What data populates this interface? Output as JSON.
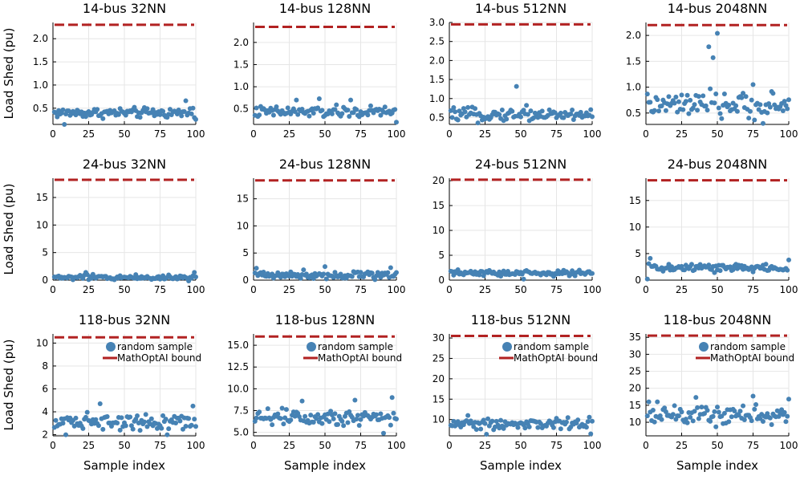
{
  "chart_data": [
    {
      "type": "scatter",
      "title": "14-bus 32NN",
      "xlabel": "",
      "ylabel": "Load Shed (pu)",
      "xlim": [
        0,
        100
      ],
      "xticks": [
        0,
        25,
        50,
        75,
        100
      ],
      "ylim": [
        0.15,
        2.35
      ],
      "yticks": [
        0.5,
        1.0,
        1.5,
        2.0
      ],
      "ytick_labels": [
        "0.5",
        "1.0",
        "1.5",
        "2.0"
      ],
      "bound": 2.3,
      "scatter": {
        "base": 0.4,
        "amp": 0.1,
        "outliers": [
          [
            8,
            0.15
          ],
          [
            93,
            0.66
          ],
          [
            98,
            0.5
          ]
        ]
      }
    },
    {
      "type": "scatter",
      "title": "14-bus 128NN",
      "xlabel": "",
      "ylabel": "",
      "xlim": [
        0,
        100
      ],
      "xticks": [
        0,
        25,
        50,
        75,
        100
      ],
      "ylim": [
        0.15,
        2.45
      ],
      "yticks": [
        0.5,
        1.0,
        1.5,
        2.0
      ],
      "ytick_labels": [
        "0.5",
        "1.0",
        "1.5",
        "2.0"
      ],
      "bound": 2.35,
      "scatter": {
        "base": 0.43,
        "amp": 0.12,
        "outliers": [
          [
            30,
            0.7
          ],
          [
            46,
            0.73
          ],
          [
            68,
            0.7
          ],
          [
            100,
            0.2
          ]
        ]
      }
    },
    {
      "type": "scatter",
      "title": "14-bus 512NN",
      "xlabel": "",
      "ylabel": "",
      "xlim": [
        0,
        100
      ],
      "xticks": [
        0,
        25,
        50,
        75,
        100
      ],
      "ylim": [
        0.32,
        3.0
      ],
      "yticks": [
        0.5,
        1.0,
        1.5,
        2.0,
        2.5,
        3.0
      ],
      "ytick_labels": [
        "0.5",
        "1.0",
        "1.5",
        "2.0",
        "2.5",
        "3.0"
      ],
      "bound": 2.95,
      "scatter": {
        "base": 0.58,
        "amp": 0.14,
        "outliers": [
          [
            47,
            1.32
          ],
          [
            20,
            0.36
          ],
          [
            54,
            0.82
          ]
        ]
      }
    },
    {
      "type": "scatter",
      "title": "14-bus 2048NN",
      "xlabel": "",
      "ylabel": "",
      "xlim": [
        0,
        100
      ],
      "xticks": [
        0,
        25,
        50,
        75,
        100
      ],
      "ylim": [
        0.28,
        2.25
      ],
      "yticks": [
        0.5,
        1.0,
        1.5,
        2.0
      ],
      "ytick_labels": [
        "0.5",
        "1.0",
        "1.5",
        "2.0"
      ],
      "bound": 2.2,
      "scatter": {
        "base": 0.65,
        "amp": 0.22,
        "outliers": [
          [
            44,
            1.78
          ],
          [
            47,
            1.57
          ],
          [
            50,
            2.04
          ],
          [
            75,
            1.05
          ],
          [
            82,
            0.3
          ]
        ]
      }
    },
    {
      "type": "scatter",
      "title": "24-bus 32NN",
      "xlabel": "",
      "ylabel": "Load Shed (pu)",
      "xlim": [
        0,
        100
      ],
      "xticks": [
        0,
        25,
        50,
        75,
        100
      ],
      "ylim": [
        0,
        18.5
      ],
      "yticks": [
        0,
        5,
        10,
        15
      ],
      "ytick_labels": [
        "0",
        "5",
        "10",
        "15"
      ],
      "bound": 18.2,
      "scatter": {
        "base": 0.5,
        "amp": 0.45,
        "outliers": [
          [
            23,
            1.4
          ],
          [
            99,
            1.4
          ]
        ]
      }
    },
    {
      "type": "scatter",
      "title": "24-bus 128NN",
      "xlabel": "",
      "ylabel": "",
      "xlim": [
        0,
        100
      ],
      "xticks": [
        0,
        25,
        50,
        75,
        100
      ],
      "ylim": [
        0,
        18.8
      ],
      "yticks": [
        0,
        5,
        10,
        15
      ],
      "ytick_labels": [
        "0",
        "5",
        "10",
        "15"
      ],
      "bound": 18.4,
      "scatter": {
        "base": 1.0,
        "amp": 0.7,
        "outliers": [
          [
            2,
            2.2
          ],
          [
            50,
            2.5
          ],
          [
            96,
            2.3
          ]
        ]
      }
    },
    {
      "type": "scatter",
      "title": "24-bus 512NN",
      "xlabel": "",
      "ylabel": "",
      "xlim": [
        0,
        100
      ],
      "xticks": [
        0,
        25,
        50,
        75,
        100
      ],
      "ylim": [
        0,
        20.5
      ],
      "yticks": [
        0,
        5,
        10,
        15,
        20
      ],
      "ytick_labels": [
        "0",
        "5",
        "10",
        "15",
        "20"
      ],
      "bound": 20.2,
      "scatter": {
        "base": 1.4,
        "amp": 0.55,
        "outliers": [
          [
            52,
            0.2
          ]
        ]
      }
    },
    {
      "type": "scatter",
      "title": "24-bus 2048NN",
      "xlabel": "",
      "ylabel": "",
      "xlim": [
        0,
        100
      ],
      "xticks": [
        0,
        25,
        50,
        75,
        100
      ],
      "ylim": [
        0,
        19.2
      ],
      "yticks": [
        0,
        5,
        10,
        15
      ],
      "ytick_labels": [
        "0",
        "5",
        "10",
        "15"
      ],
      "bound": 18.8,
      "scatter": {
        "base": 2.3,
        "amp": 0.8,
        "outliers": [
          [
            1,
            0.2
          ],
          [
            3,
            4.1
          ],
          [
            100,
            3.8
          ]
        ]
      }
    },
    {
      "type": "scatter",
      "title": "118-bus 32NN",
      "xlabel": "Sample index",
      "ylabel": "Load Shed (pu)",
      "xlim": [
        0,
        100
      ],
      "xticks": [
        0,
        25,
        50,
        75,
        100
      ],
      "ylim": [
        1.9,
        10.8
      ],
      "yticks": [
        2,
        4,
        6,
        8,
        10
      ],
      "ytick_labels": [
        "2",
        "4",
        "6",
        "8",
        "10"
      ],
      "bound": 10.5,
      "scatter": {
        "base": 3.2,
        "amp": 0.65,
        "outliers": [
          [
            9,
            2.0
          ],
          [
            33,
            4.7
          ],
          [
            80,
            2.0
          ],
          [
            98,
            4.5
          ]
        ]
      }
    },
    {
      "type": "scatter",
      "title": "118-bus 128NN",
      "xlabel": "Sample index",
      "ylabel": "",
      "xlim": [
        0,
        100
      ],
      "xticks": [
        0,
        25,
        50,
        75,
        100
      ],
      "ylim": [
        4.6,
        16.3
      ],
      "yticks": [
        5.0,
        7.5,
        10.0,
        12.5,
        15.0
      ],
      "ytick_labels": [
        "5.0",
        "7.5",
        "10.0",
        "12.5",
        "15.0"
      ],
      "bound": 16.0,
      "scatter": {
        "base": 6.8,
        "amp": 0.9,
        "outliers": [
          [
            34,
            8.6
          ],
          [
            71,
            8.7
          ],
          [
            97,
            9.0
          ],
          [
            91,
            4.9
          ]
        ]
      }
    },
    {
      "type": "scatter",
      "title": "118-bus 512NN",
      "xlabel": "Sample index",
      "ylabel": "",
      "xlim": [
        0,
        100
      ],
      "xticks": [
        0,
        25,
        50,
        75,
        100
      ],
      "ylim": [
        6,
        31
      ],
      "yticks": [
        10,
        15,
        20,
        25,
        30
      ],
      "ytick_labels": [
        "10",
        "15",
        "20",
        "25",
        "30"
      ],
      "bound": 30.5,
      "scatter": {
        "base": 9.0,
        "amp": 1.3,
        "outliers": [
          [
            13,
            11.0
          ],
          [
            26,
            6.4
          ],
          [
            99,
            6.5
          ]
        ]
      }
    },
    {
      "type": "scatter",
      "title": "118-bus 2048NN",
      "xlabel": "Sample index",
      "ylabel": "",
      "xlim": [
        0,
        100
      ],
      "xticks": [
        0,
        25,
        50,
        75,
        100
      ],
      "ylim": [
        6,
        36
      ],
      "yticks": [
        10,
        15,
        20,
        25,
        30,
        35
      ],
      "ytick_labels": [
        "10",
        "15",
        "20",
        "25",
        "30",
        "35"
      ],
      "bound": 35.5,
      "scatter": {
        "base": 12.0,
        "amp": 2.5,
        "outliers": [
          [
            35,
            17.3
          ],
          [
            75,
            17.7
          ],
          [
            100,
            16.8
          ],
          [
            2,
            16.0
          ],
          [
            8,
            16.0
          ]
        ]
      }
    }
  ],
  "legend": {
    "series_labels": [
      "random sample",
      "MathOptAI bound"
    ],
    "placement": "top-right",
    "shown_in_row": 3
  },
  "series": {
    "scatter_name": "random sample",
    "bound_name": "MathOptAI bound",
    "n_samples": 100
  },
  "colors": {
    "scatter": "#4682b4",
    "bound": "#b22222",
    "grid": "#e6e6e6"
  }
}
